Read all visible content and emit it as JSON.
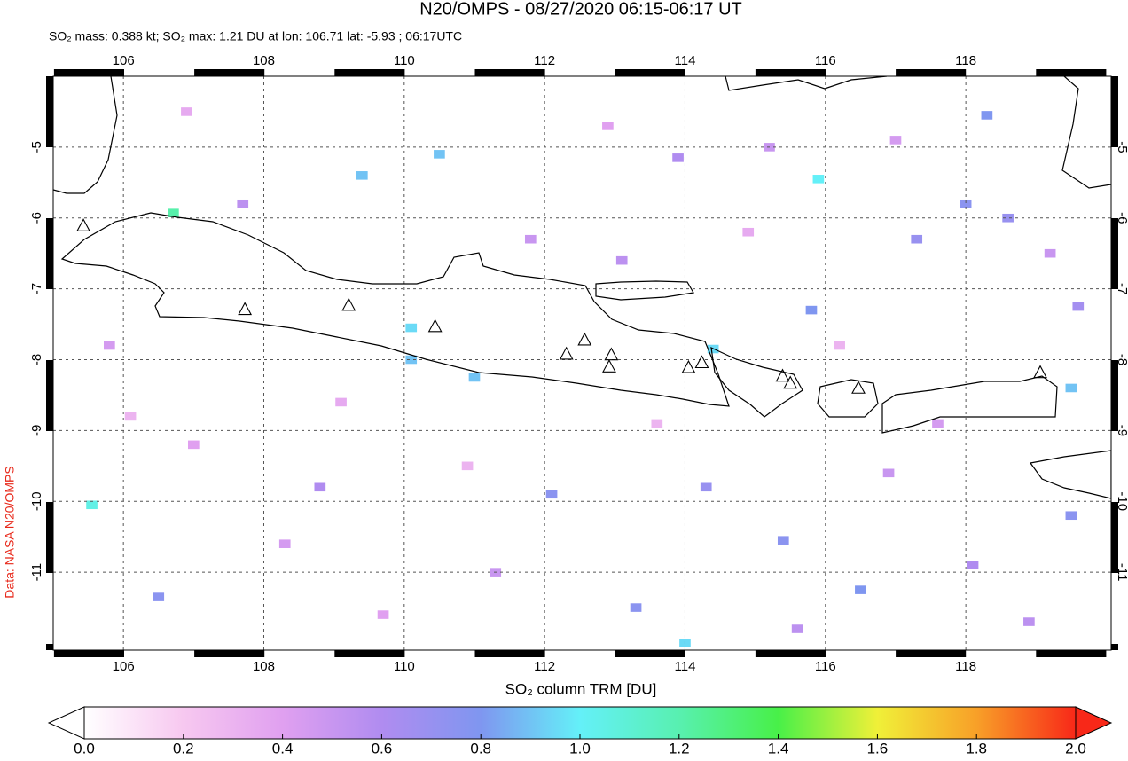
{
  "chart_data": {
    "type": "map",
    "title": "N20/OMPS - 08/27/2020 06:15-06:17 UT",
    "subtitle": "SO₂ mass: 0.388 kt; SO₂ max: 1.21 DU at lon: 106.71 lat: -5.93 ; 06:17UTC",
    "credit": "Data: NASA N20/OMPS",
    "colorbar_label": "SO₂ column TRM [DU]",
    "xlim": [
      105,
      120.07
    ],
    "ylim": [
      -12.1,
      -4
    ],
    "xticks": [
      106,
      108,
      110,
      112,
      114,
      116,
      118
    ],
    "yticks": [
      -5,
      -6,
      -7,
      -8,
      -9,
      -10,
      -11
    ],
    "grid": true,
    "clim": [
      0,
      2
    ],
    "cticks": [
      {
        "value": 0,
        "label": "0.0"
      },
      0.2,
      0.4,
      0.6,
      0.8,
      {
        "value": 1,
        "label": "1.0"
      },
      1.2,
      1.4,
      1.6,
      1.8,
      {
        "value": 2,
        "label": "2.0"
      }
    ],
    "colors": [
      "#ffffff",
      "#f7c8f0",
      "#e0a0f0",
      "#b08cf0",
      "#7f96f0",
      "#64f0f8",
      "#58f0b0",
      "#48f048",
      "#f0f038",
      "#f8a028",
      "#f82818"
    ],
    "volcanoes": [
      [
        105.43,
        -6.12
      ],
      [
        107.73,
        -7.3
      ],
      [
        109.21,
        -7.24
      ],
      [
        110.44,
        -7.54
      ],
      [
        112.31,
        -7.93
      ],
      [
        112.57,
        -7.73
      ],
      [
        112.95,
        -7.94
      ],
      [
        112.92,
        -8.11
      ],
      [
        114.05,
        -8.12
      ],
      [
        114.24,
        -8.05
      ],
      [
        115.39,
        -8.24
      ],
      [
        115.5,
        -8.34
      ],
      [
        116.47,
        -8.41
      ],
      [
        119.06,
        -8.19
      ]
    ],
    "pixels": [
      [
        106.71,
        -5.93,
        1.21
      ],
      [
        105.55,
        -10.05,
        1.05
      ],
      [
        115.9,
        -5.45,
        1.0
      ],
      [
        114.4,
        -7.85,
        0.95
      ],
      [
        110.1,
        -7.55,
        0.95
      ],
      [
        110.1,
        -8.0,
        0.9
      ],
      [
        111.0,
        -8.25,
        0.9
      ],
      [
        110.5,
        -5.1,
        0.9
      ],
      [
        109.4,
        -5.4,
        0.9
      ],
      [
        114.0,
        -12.0,
        0.95
      ],
      [
        118.3,
        -4.55,
        0.8
      ],
      [
        118.0,
        -5.8,
        0.75
      ],
      [
        117.3,
        -6.3,
        0.7
      ],
      [
        118.6,
        -6.0,
        0.7
      ],
      [
        119.6,
        -7.25,
        0.65
      ],
      [
        119.5,
        -8.4,
        0.9
      ],
      [
        119.5,
        -10.2,
        0.75
      ],
      [
        115.8,
        -7.3,
        0.8
      ],
      [
        116.5,
        -11.25,
        0.8
      ],
      [
        115.4,
        -10.55,
        0.75
      ],
      [
        113.3,
        -11.5,
        0.75
      ],
      [
        114.3,
        -9.8,
        0.7
      ],
      [
        112.1,
        -9.9,
        0.75
      ],
      [
        106.5,
        -11.35,
        0.75
      ],
      [
        108.8,
        -9.8,
        0.6
      ],
      [
        107.7,
        -5.8,
        0.55
      ],
      [
        113.9,
        -5.15,
        0.6
      ],
      [
        115.2,
        -5.0,
        0.5
      ],
      [
        117.0,
        -4.9,
        0.45
      ],
      [
        119.2,
        -6.5,
        0.5
      ],
      [
        105.8,
        -7.8,
        0.45
      ],
      [
        107.0,
        -9.2,
        0.4
      ],
      [
        108.3,
        -10.6,
        0.45
      ],
      [
        111.8,
        -6.3,
        0.5
      ],
      [
        113.1,
        -6.6,
        0.55
      ],
      [
        116.9,
        -9.6,
        0.5
      ],
      [
        118.9,
        -11.7,
        0.55
      ],
      [
        111.3,
        -11.0,
        0.5
      ],
      [
        109.7,
        -11.6,
        0.4
      ],
      [
        106.9,
        -4.5,
        0.35
      ],
      [
        112.9,
        -4.7,
        0.4
      ],
      [
        114.9,
        -6.2,
        0.35
      ],
      [
        117.6,
        -8.9,
        0.45
      ],
      [
        109.1,
        -8.6,
        0.35
      ],
      [
        110.9,
        -9.5,
        0.3
      ],
      [
        115.6,
        -11.8,
        0.55
      ],
      [
        118.1,
        -10.9,
        0.6
      ],
      [
        106.1,
        -8.8,
        0.3
      ],
      [
        113.6,
        -8.9,
        0.3
      ],
      [
        116.2,
        -7.8,
        0.3
      ]
    ]
  }
}
